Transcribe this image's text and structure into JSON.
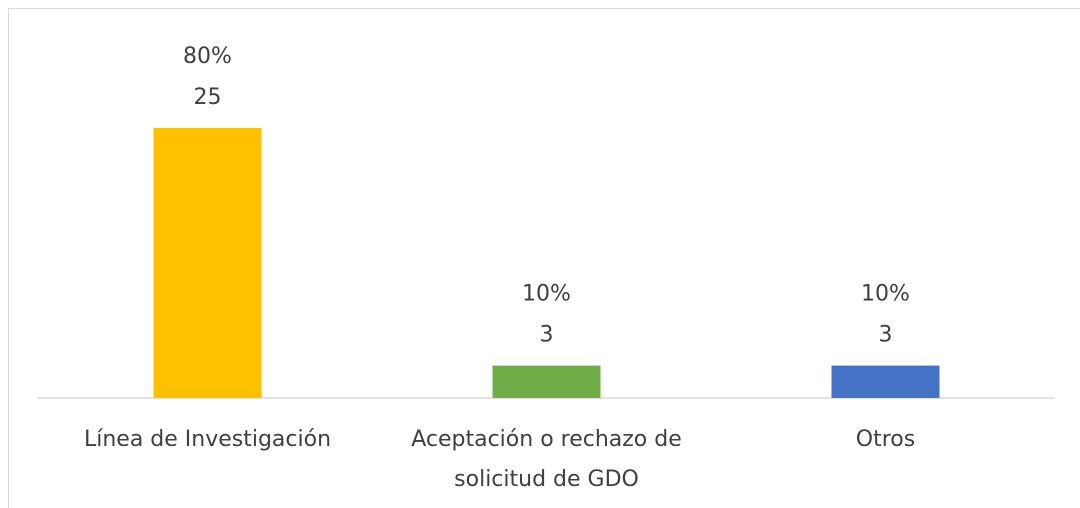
{
  "chart_data": {
    "type": "bar",
    "categories": [
      "Línea de Investigación",
      "Aceptación o rechazo de solicitud de GDO",
      "Otros"
    ],
    "values": [
      25,
      3,
      3
    ],
    "percent_labels": [
      "80%",
      "10%",
      "10%"
    ],
    "colors": [
      "#ffc000",
      "#70ad47",
      "#4472c4"
    ]
  }
}
